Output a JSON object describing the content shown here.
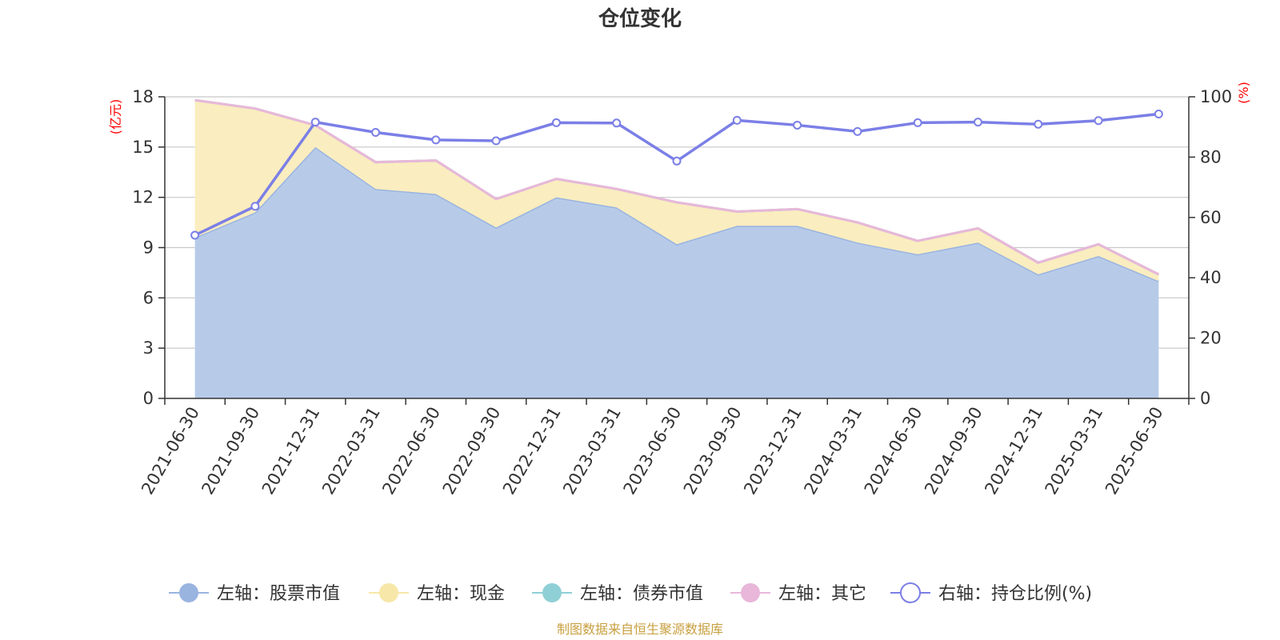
{
  "chart_data": {
    "type": "area",
    "title": "仓位变化",
    "categories": [
      "2021-06-30",
      "2021-09-30",
      "2021-12-31",
      "2022-03-31",
      "2022-06-30",
      "2022-09-30",
      "2022-12-31",
      "2023-03-31",
      "2023-06-30",
      "2023-09-30",
      "2023-12-31",
      "2024-03-31",
      "2024-06-30",
      "2024-09-30",
      "2024-12-31",
      "2025-03-31",
      "2025-06-30"
    ],
    "left_axis": {
      "unit": "(亿元)",
      "min": 0,
      "max": 18,
      "ticks": [
        0,
        3,
        6,
        9,
        12,
        15,
        18
      ]
    },
    "right_axis": {
      "unit": "(%)",
      "min": 0,
      "max": 100,
      "ticks": [
        0,
        20,
        40,
        60,
        80,
        100
      ]
    },
    "series": [
      {
        "name": "左轴：股票市值",
        "axis": "left",
        "kind": "area",
        "color": "#9ab4e0",
        "fill": "#b7cbe9",
        "values": [
          9.6,
          11.1,
          15.0,
          12.5,
          12.2,
          10.2,
          12.0,
          11.4,
          9.2,
          10.3,
          10.3,
          9.3,
          8.6,
          9.3,
          7.4,
          8.5,
          7.0
        ]
      },
      {
        "name": "左轴：现金",
        "axis": "left",
        "kind": "area",
        "color": "#f7e7a8",
        "fill": "#faedbf",
        "values": [
          8.2,
          6.2,
          1.3,
          1.6,
          2.0,
          1.7,
          1.1,
          1.1,
          2.5,
          0.85,
          1.0,
          1.2,
          0.8,
          0.85,
          0.7,
          0.7,
          0.4
        ]
      },
      {
        "name": "左轴：债券市值",
        "axis": "left",
        "kind": "area",
        "color": "#8fd0d6",
        "fill": "#b8e3e6",
        "values": [
          0,
          0,
          0,
          0,
          0,
          0,
          0,
          0,
          0,
          0,
          0,
          0,
          0,
          0,
          0,
          0,
          0
        ]
      },
      {
        "name": "左轴：其它",
        "axis": "left",
        "kind": "area",
        "color": "#e8b7d9",
        "fill": "#f1d2e8",
        "values": [
          0,
          0,
          0,
          0,
          0,
          0,
          0,
          0,
          0,
          0,
          0,
          0,
          0,
          0,
          0,
          0,
          0
        ]
      },
      {
        "name": "右轴：持仓比例(%)",
        "axis": "right",
        "kind": "line",
        "color": "#7b7fe6",
        "values": [
          54.1,
          63.7,
          91.6,
          88.2,
          85.7,
          85.4,
          91.4,
          91.3,
          78.7,
          92.2,
          90.6,
          88.5,
          91.4,
          91.6,
          90.9,
          92.1,
          94.3
        ]
      }
    ],
    "grid": true,
    "legend": "bottom",
    "source": "制图数据来自恒生聚源数据库"
  }
}
